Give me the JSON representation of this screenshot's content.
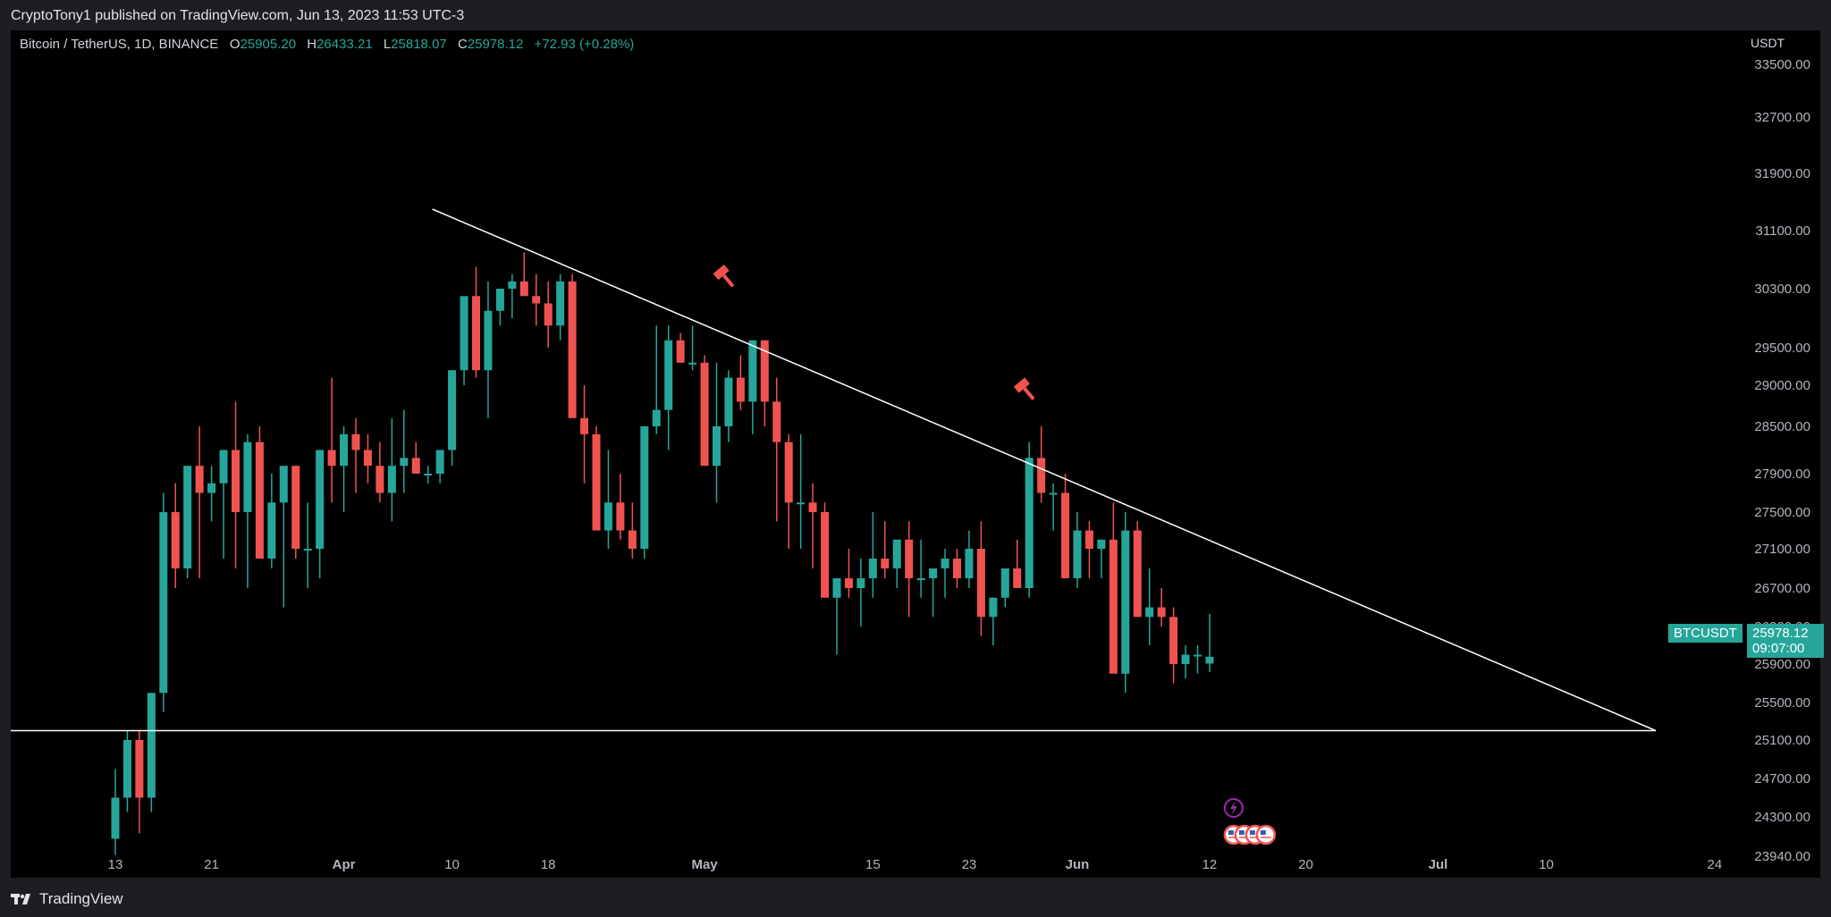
{
  "header": {
    "publisher": "CryptoTony1 published on TradingView.com, Jun 13, 2023 11:53 UTC-3"
  },
  "legend": {
    "symbol": "Bitcoin / TetherUS, 1D, BINANCE",
    "open_label": "O",
    "open": "25905.20",
    "high_label": "H",
    "high": "26433.21",
    "low_label": "L",
    "low": "25818.07",
    "close_label": "C",
    "close": "25978.12",
    "change": "+72.93 (+0.28%)"
  },
  "price_axis": {
    "currency": "USDT"
  },
  "badges": {
    "symbol": "BTCUSDT",
    "last_price": "25978.12",
    "countdown": "09:07:00"
  },
  "footer": {
    "brand": "TradingView"
  },
  "colors": {
    "up": "#26a69a",
    "down": "#ef5350",
    "background": "#000000",
    "lines": "#ffffff",
    "event": "#9c27b0"
  },
  "chart_data": {
    "type": "candlestick",
    "y_ticks": [
      "33500.00",
      "32700.00",
      "31900.00",
      "31100.00",
      "30300.00",
      "29500.00",
      "29000.00",
      "28500.00",
      "27900.00",
      "27500.00",
      "27100.00",
      "26700.00",
      "26300.00",
      "25900.00",
      "25500.00",
      "25100.00",
      "24700.00",
      "24300.00",
      "23940.00"
    ],
    "x_ticks": [
      {
        "label": "13",
        "i": 0
      },
      {
        "label": "21",
        "i": 8
      },
      {
        "label": "Apr",
        "i": 19
      },
      {
        "label": "10",
        "i": 28
      },
      {
        "label": "18",
        "i": 36
      },
      {
        "label": "May",
        "i": 49
      },
      {
        "label": "15",
        "i": 63
      },
      {
        "label": "23",
        "i": 71
      },
      {
        "label": "Jun",
        "i": 80
      },
      {
        "label": "12",
        "i": 91
      },
      {
        "label": "20",
        "i": 99
      },
      {
        "label": "Jul",
        "i": 110
      },
      {
        "label": "10",
        "i": 119
      },
      {
        "label": "24",
        "i": 133
      }
    ],
    "series": [
      [
        24100,
        24800,
        23950,
        24500
      ],
      [
        24500,
        25200,
        24350,
        25100
      ],
      [
        25100,
        25200,
        24150,
        24500
      ],
      [
        24500,
        25500,
        24350,
        25600
      ],
      [
        25600,
        27700,
        25400,
        27500
      ],
      [
        27500,
        27800,
        26700,
        26900
      ],
      [
        26900,
        28000,
        26800,
        28000
      ],
      [
        28000,
        28500,
        26800,
        27700
      ],
      [
        27700,
        28000,
        27400,
        27800
      ],
      [
        27800,
        28100,
        27000,
        28200
      ],
      [
        28200,
        28800,
        26900,
        27500
      ],
      [
        27500,
        28400,
        26700,
        28300
      ],
      [
        28300,
        28500,
        27200,
        27000
      ],
      [
        27000,
        27900,
        26900,
        27600
      ],
      [
        27600,
        28000,
        26500,
        28000
      ],
      [
        28000,
        27900,
        27000,
        27100
      ],
      [
        27100,
        27600,
        26700,
        27100
      ],
      [
        27100,
        28000,
        26800,
        28200
      ],
      [
        28200,
        29100,
        27600,
        28000
      ],
      [
        28000,
        28500,
        27500,
        28400
      ],
      [
        28400,
        28600,
        27700,
        28200
      ],
      [
        28200,
        28400,
        27800,
        28000
      ],
      [
        28000,
        28300,
        27600,
        27700
      ],
      [
        27700,
        28600,
        27400,
        28000
      ],
      [
        28000,
        28700,
        27700,
        28100
      ],
      [
        28100,
        28300,
        27900,
        27900
      ],
      [
        27900,
        28000,
        27800,
        27900
      ],
      [
        27900,
        28100,
        27800,
        28200
      ],
      [
        28200,
        28500,
        28000,
        29200
      ],
      [
        29200,
        29300,
        29000,
        30200
      ],
      [
        30200,
        30600,
        29100,
        29200
      ],
      [
        29200,
        30400,
        28600,
        30000
      ],
      [
        30000,
        30300,
        29800,
        30300
      ],
      [
        30300,
        30500,
        29900,
        30400
      ],
      [
        30400,
        30800,
        30200,
        30200
      ],
      [
        30200,
        30500,
        29800,
        30100
      ],
      [
        30100,
        30400,
        29500,
        29800
      ],
      [
        29800,
        30500,
        29600,
        30400
      ],
      [
        30400,
        30500,
        28800,
        28600
      ],
      [
        28600,
        29000,
        27800,
        28400
      ],
      [
        28400,
        28500,
        27600,
        27300
      ],
      [
        27300,
        28200,
        27100,
        27600
      ],
      [
        27600,
        27900,
        27200,
        27300
      ],
      [
        27300,
        27600,
        27000,
        27100
      ],
      [
        27100,
        28500,
        27000,
        28500
      ],
      [
        28500,
        29800,
        28400,
        28700
      ],
      [
        28700,
        29800,
        28200,
        29600
      ],
      [
        29600,
        29700,
        29300,
        29300
      ],
      [
        29300,
        29800,
        29200,
        29300
      ],
      [
        29300,
        29400,
        28000,
        28000
      ],
      [
        28000,
        29300,
        27600,
        28500
      ],
      [
        28500,
        29200,
        28300,
        29100
      ],
      [
        29100,
        29400,
        28700,
        28800
      ],
      [
        28800,
        29600,
        28400,
        29600
      ],
      [
        29600,
        29600,
        28500,
        28800
      ],
      [
        28800,
        29100,
        27400,
        28300
      ],
      [
        28300,
        28400,
        27100,
        27600
      ],
      [
        27600,
        28400,
        27100,
        27600
      ],
      [
        27600,
        27800,
        26900,
        27500
      ],
      [
        27500,
        27600,
        26700,
        26600
      ],
      [
        26600,
        26800,
        26000,
        26800
      ],
      [
        26800,
        27100,
        26600,
        26700
      ],
      [
        26700,
        27000,
        26300,
        26800
      ],
      [
        26800,
        27500,
        26600,
        27000
      ],
      [
        27000,
        27400,
        26800,
        26900
      ],
      [
        26900,
        27100,
        26700,
        27200
      ],
      [
        27200,
        27400,
        26400,
        26800
      ],
      [
        26800,
        27200,
        26600,
        26800
      ],
      [
        26800,
        26900,
        26400,
        26900
      ],
      [
        26900,
        27100,
        26600,
        27000
      ],
      [
        27000,
        27100,
        26700,
        26800
      ],
      [
        26800,
        27300,
        26700,
        27100
      ],
      [
        27100,
        27400,
        26200,
        26400
      ],
      [
        26400,
        26600,
        26100,
        26600
      ],
      [
        26600,
        26900,
        26500,
        26900
      ],
      [
        26900,
        27200,
        26700,
        26700
      ],
      [
        26700,
        28300,
        26600,
        28100
      ],
      [
        28100,
        28500,
        27600,
        27700
      ],
      [
        27700,
        27800,
        27300,
        27700
      ],
      [
        27700,
        27900,
        26800,
        26800
      ],
      [
        26800,
        27500,
        26700,
        27300
      ],
      [
        27300,
        27400,
        26800,
        27100
      ],
      [
        27100,
        27200,
        26800,
        27200
      ],
      [
        27200,
        27600,
        26600,
        25800
      ],
      [
        25800,
        27500,
        25600,
        27300
      ],
      [
        27300,
        27400,
        26400,
        26400
      ],
      [
        26400,
        26900,
        26100,
        26500
      ],
      [
        26500,
        26700,
        26300,
        26400
      ],
      [
        26400,
        26500,
        25700,
        25900
      ],
      [
        25900,
        26100,
        25750,
        26000
      ],
      [
        26000,
        26100,
        25800,
        26000
      ],
      [
        25905,
        26433,
        25818,
        25978
      ]
    ],
    "horizontal_line": 25200,
    "trendline": {
      "start": {
        "i": 28,
        "price": 31200
      },
      "end": {
        "i": 136,
        "price": 25200
      }
    },
    "markers": [
      {
        "type": "gavel",
        "i": 51,
        "price": 30300
      },
      {
        "type": "gavel",
        "i": 76,
        "price": 28800
      }
    ]
  }
}
